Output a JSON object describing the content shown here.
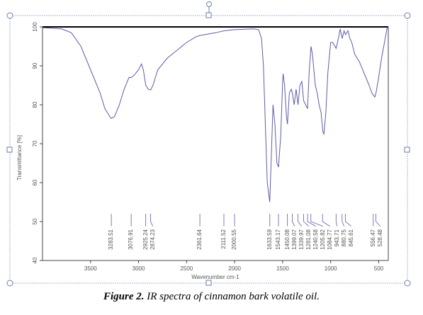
{
  "chart_data": {
    "type": "line",
    "xlabel": "Wavenumber cm-1",
    "ylabel": "Transmittance [%]",
    "xlim": [
      4000,
      400
    ],
    "ylim": [
      40,
      100
    ],
    "xticks": [
      3500,
      3000,
      2500,
      2000,
      1500,
      1000,
      500
    ],
    "yticks": [
      40,
      50,
      60,
      70,
      80,
      90,
      100
    ],
    "x": [
      4000,
      3800,
      3700,
      3600,
      3500,
      3400,
      3350,
      3300,
      3283,
      3250,
      3200,
      3150,
      3100,
      3076,
      3050,
      3000,
      2970,
      2950,
      2925,
      2900,
      2874,
      2850,
      2800,
      2700,
      2600,
      2500,
      2400,
      2361,
      2200,
      2111,
      2000,
      1800,
      1750,
      1720,
      1700,
      1680,
      1660,
      1634,
      1620,
      1600,
      1580,
      1560,
      1543,
      1520,
      1500,
      1495,
      1480,
      1460,
      1450,
      1430,
      1410,
      1399,
      1380,
      1360,
      1340,
      1320,
      1300,
      1281,
      1260,
      1240,
      1225,
      1205,
      1190,
      1160,
      1140,
      1120,
      1100,
      1080,
      1070,
      1050,
      1030,
      1000,
      980,
      943,
      920,
      900,
      880,
      860,
      845,
      820,
      800,
      780,
      750,
      700,
      650,
      600,
      570,
      556,
      540,
      528,
      500,
      470,
      440,
      410
    ],
    "series": [
      {
        "color": "#5c5caa",
        "values": [
          99.8,
          99.5,
          98.5,
          95,
          89,
          83,
          79,
          77,
          76.5,
          77,
          80,
          84,
          87,
          87,
          87.5,
          89,
          90.5,
          89,
          85,
          84,
          83.8,
          85,
          89,
          92,
          94,
          96,
          97.5,
          97.8,
          98.5,
          99,
          99.3,
          99.5,
          99.3,
          97,
          90,
          75,
          60,
          55,
          65,
          80,
          75,
          65,
          64,
          72,
          86,
          88,
          85,
          77,
          75,
          83,
          84,
          83,
          80,
          84,
          80,
          85,
          86,
          81,
          80,
          79,
          88,
          95,
          93,
          85,
          83,
          80,
          78,
          73,
          72.5,
          78,
          88,
          96,
          96,
          94.5,
          97,
          99.5,
          97,
          99,
          98,
          99,
          97,
          96,
          93,
          91,
          88,
          85,
          83,
          82.5,
          82,
          83,
          87,
          92,
          96,
          100
        ]
      }
    ],
    "peaks": [
      3283.51,
      3076.91,
      2925.24,
      2874.23,
      2361.64,
      2111.52,
      2000.55,
      1633.59,
      1543.17,
      1450.08,
      1399.07,
      1339.97,
      1281.08,
      1240.58,
      1205.82,
      1084.77,
      943.71,
      880.75,
      845.61,
      556.47,
      528.48
    ]
  },
  "caption": {
    "label": "Figure 2.",
    "text": "IR spectra of cinnamon bark volatile oil."
  }
}
